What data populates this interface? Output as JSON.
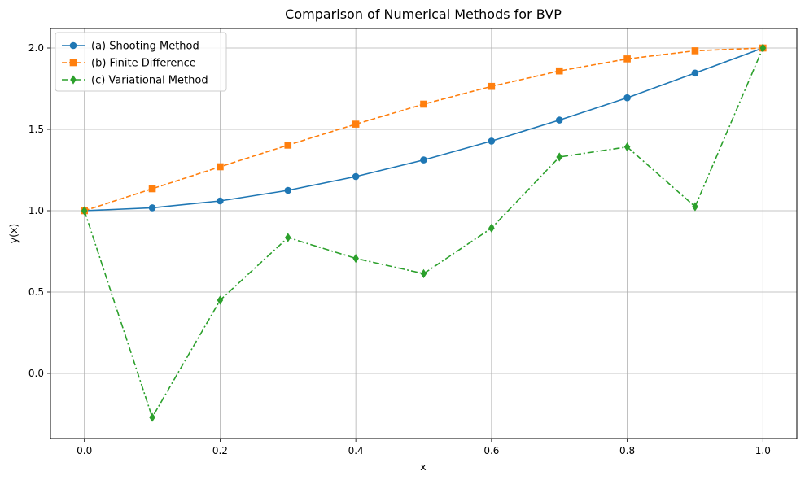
{
  "chart_data": {
    "type": "line",
    "title": "Comparison of Numerical Methods for BVP",
    "xlabel": "x",
    "ylabel": "y(x)",
    "xlim": [
      -0.05,
      1.05
    ],
    "ylim": [
      -0.4,
      2.12
    ],
    "xticks": [
      0.0,
      0.2,
      0.4,
      0.6,
      0.8,
      1.0
    ],
    "xtick_labels": [
      "0.0",
      "0.2",
      "0.4",
      "0.6",
      "0.8",
      "1.0"
    ],
    "yticks": [
      0.0,
      0.5,
      1.0,
      1.5,
      2.0
    ],
    "ytick_labels": [
      "0.0",
      "0.5",
      "1.0",
      "1.5",
      "2.0"
    ],
    "grid": true,
    "legend_position": "top-left",
    "x": [
      0.0,
      0.1,
      0.2,
      0.3,
      0.4,
      0.5,
      0.6,
      0.7,
      0.8,
      0.9,
      1.0
    ],
    "series": [
      {
        "name": "(a) Shooting Method",
        "color": "#1f77b4",
        "linestyle": "solid",
        "marker": "circle",
        "values": [
          1.0,
          1.018,
          1.06,
          1.125,
          1.21,
          1.312,
          1.428,
          1.557,
          1.694,
          1.846,
          2.0
        ]
      },
      {
        "name": "(b) Finite Difference",
        "color": "#ff7f0e",
        "linestyle": "dashed",
        "marker": "square",
        "values": [
          1.0,
          1.135,
          1.27,
          1.403,
          1.532,
          1.655,
          1.764,
          1.859,
          1.933,
          1.983,
          2.0
        ]
      },
      {
        "name": "(c) Variational Method",
        "color": "#2ca02c",
        "linestyle": "dashdot",
        "marker": "diamond",
        "values": [
          1.0,
          -0.27,
          0.45,
          0.835,
          0.707,
          0.613,
          0.893,
          1.33,
          1.392,
          1.025,
          2.0
        ]
      }
    ]
  }
}
